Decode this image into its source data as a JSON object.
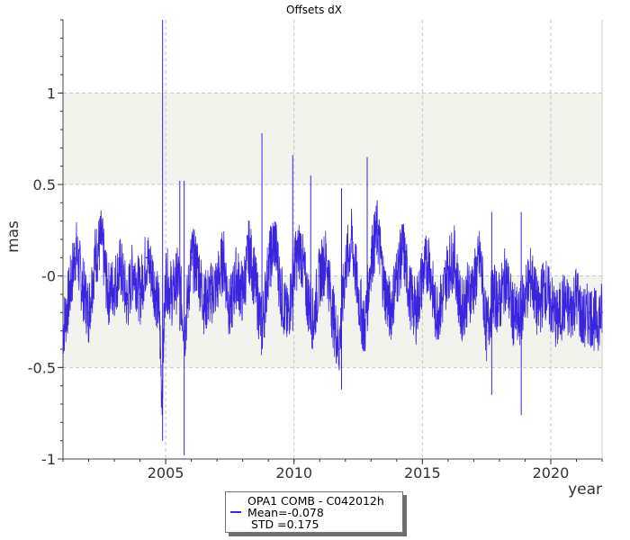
{
  "chart_data": {
    "type": "line",
    "title": "Offsets dX",
    "xlabel": "year",
    "ylabel": "mas",
    "xlim": [
      2001.0,
      2022.0
    ],
    "ylim": [
      -1.0,
      1.4
    ],
    "x_ticks": [
      2005,
      2010,
      2015,
      2020
    ],
    "y_ticks": [
      1,
      0.5,
      0,
      -0.5,
      -1
    ],
    "y_tick_labels": [
      "1",
      "0.5",
      "-0",
      "-0.5",
      "-1"
    ],
    "grid": true,
    "shaded_bands": [
      [
        0.5,
        1.0
      ],
      [
        -0.5,
        0.0
      ]
    ],
    "legend_position": "bottom-center",
    "series": [
      {
        "name": "OPA1 COMB - C042012h",
        "color": "#3a24e0",
        "x": [
          2001.0,
          2001.25,
          2001.5,
          2001.75,
          2002.0,
          2002.25,
          2002.5,
          2002.75,
          2003.0,
          2003.25,
          2003.5,
          2003.75,
          2004.0,
          2004.25,
          2004.5,
          2004.75,
          2004.85,
          2005.0,
          2005.25,
          2005.5,
          2005.75,
          2006.0,
          2006.25,
          2006.5,
          2006.75,
          2007.0,
          2007.25,
          2007.5,
          2007.75,
          2008.0,
          2008.25,
          2008.5,
          2008.75,
          2009.0,
          2009.25,
          2009.5,
          2009.75,
          2010.0,
          2010.25,
          2010.5,
          2010.75,
          2011.0,
          2011.25,
          2011.5,
          2011.75,
          2012.0,
          2012.25,
          2012.5,
          2012.75,
          2013.0,
          2013.25,
          2013.5,
          2013.75,
          2014.0,
          2014.25,
          2014.5,
          2014.75,
          2015.0,
          2015.25,
          2015.5,
          2015.75,
          2016.0,
          2016.25,
          2016.5,
          2016.75,
          2017.0,
          2017.25,
          2017.5,
          2017.75,
          2018.0,
          2018.25,
          2018.5,
          2018.75,
          2019.0,
          2019.25,
          2019.5,
          2019.75,
          2020.0,
          2020.25,
          2020.5,
          2020.75,
          2021.0,
          2021.25,
          2021.5,
          2021.75,
          2022.0
        ],
        "values": [
          -0.3,
          -0.1,
          0.15,
          -0.05,
          -0.2,
          0.1,
          0.2,
          -0.1,
          -0.05,
          0.05,
          -0.15,
          0.05,
          -0.1,
          0.1,
          0.0,
          -0.2,
          -0.65,
          0.0,
          -0.1,
          0.0,
          -0.3,
          0.1,
          0.05,
          -0.15,
          -0.1,
          -0.05,
          0.1,
          -0.2,
          0.0,
          -0.1,
          0.15,
          -0.05,
          -0.3,
          0.05,
          0.2,
          -0.1,
          -0.25,
          0.05,
          0.15,
          -0.1,
          -0.25,
          0.0,
          0.1,
          -0.2,
          -0.4,
          0.05,
          0.2,
          -0.1,
          -0.3,
          0.1,
          0.25,
          -0.05,
          -0.2,
          0.0,
          0.15,
          -0.1,
          -0.2,
          0.0,
          0.1,
          -0.2,
          -0.15,
          0.05,
          0.1,
          -0.2,
          -0.1,
          -0.05,
          0.1,
          -0.3,
          -0.1,
          -0.15,
          0.0,
          -0.2,
          -0.25,
          -0.1,
          0.0,
          -0.2,
          -0.05,
          -0.15,
          -0.25,
          -0.15,
          -0.2,
          -0.1,
          -0.25,
          -0.2,
          -0.25,
          -0.2
        ],
        "spikes": [
          {
            "x": 2004.88,
            "low": -0.9,
            "high": 1.4
          },
          {
            "x": 2005.72,
            "low": -0.98,
            "high": 0.52
          },
          {
            "x": 2005.55,
            "low": -0.3,
            "high": 0.52
          },
          {
            "x": 2008.75,
            "low": -0.25,
            "high": 0.78
          },
          {
            "x": 2009.95,
            "low": -0.3,
            "high": 0.66
          },
          {
            "x": 2010.65,
            "low": -0.3,
            "high": 0.55
          },
          {
            "x": 2011.85,
            "low": -0.62,
            "high": 0.48
          },
          {
            "x": 2012.85,
            "low": -0.2,
            "high": 0.65
          },
          {
            "x": 2017.7,
            "low": -0.65,
            "high": 0.35
          },
          {
            "x": 2018.85,
            "low": -0.76,
            "high": 0.35
          }
        ]
      }
    ],
    "legend": {
      "series_name": "OPA1 COMB - C042012h",
      "mean": "Mean=-0.078",
      "std": " STD =0.175"
    }
  }
}
